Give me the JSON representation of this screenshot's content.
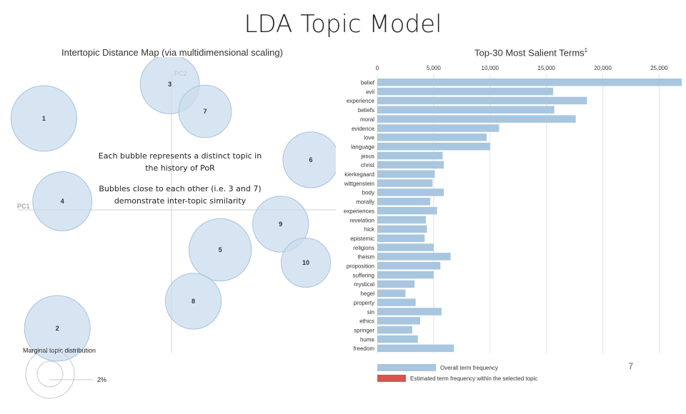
{
  "slide": {
    "title": "LDA Topic Model",
    "page_number": "7"
  },
  "annotations": {
    "bubble_topic": "Each bubble represents a distinct topic in the history of PoR",
    "bubble_similarity": "Bubbles close to each other (i.e. 3 and 7) demonstrate inter-topic similarity"
  },
  "colors": {
    "bubble_fill": "#c9dcee",
    "bubble_stroke": "#a9c3dc",
    "bar_overall": "#a8c6df",
    "bar_selected": "#d9534f"
  },
  "chart_data": [
    {
      "type": "scatter",
      "title": "Intertopic Distance Map (via multidimensional scaling)",
      "xlabel": "PC1",
      "ylabel": "PC2",
      "xlim": [
        -1,
        1
      ],
      "ylim": [
        -1,
        1
      ],
      "topics": [
        {
          "label": "1",
          "x": -0.76,
          "y": 0.64,
          "size": 1.0
        },
        {
          "label": "2",
          "x": -0.68,
          "y": -0.83,
          "size": 1.0
        },
        {
          "label": "3",
          "x": -0.01,
          "y": 0.88,
          "size": 0.9
        },
        {
          "label": "4",
          "x": -0.65,
          "y": 0.06,
          "size": 0.9
        },
        {
          "label": "5",
          "x": 0.29,
          "y": -0.28,
          "size": 0.95
        },
        {
          "label": "6",
          "x": 0.83,
          "y": 0.35,
          "size": 0.85
        },
        {
          "label": "7",
          "x": 0.2,
          "y": 0.69,
          "size": 0.8
        },
        {
          "label": "8",
          "x": 0.13,
          "y": -0.64,
          "size": 0.85
        },
        {
          "label": "9",
          "x": 0.65,
          "y": -0.1,
          "size": 0.85
        },
        {
          "label": "10",
          "x": 0.8,
          "y": -0.37,
          "size": 0.75
        }
      ],
      "legend": {
        "title": "Marginal topic distribution",
        "tick": "2%"
      }
    },
    {
      "type": "bar",
      "orientation": "horizontal",
      "title": "Top-30 Most Salient Terms",
      "title_sup": "1",
      "xlim": [
        0,
        27000
      ],
      "xticks": [
        0,
        5000,
        10000,
        15000,
        20000,
        25000
      ],
      "xtick_labels": [
        "0",
        "5,000",
        "10,000",
        "15,000",
        "20,000",
        "25,000"
      ],
      "categories": [
        "belief",
        "evil",
        "experience",
        "beliefs",
        "moral",
        "evidence",
        "love",
        "language",
        "jesus",
        "christ",
        "kierkegaard",
        "wittgenstein",
        "body",
        "morally",
        "experiences",
        "revelation",
        "hick",
        "epistemic",
        "religions",
        "theism",
        "proposition",
        "suffering",
        "mystical",
        "hegel",
        "property",
        "sin",
        "ethics",
        "springer",
        "hume",
        "freedom"
      ],
      "values": [
        27000,
        15600,
        18600,
        15700,
        17600,
        10800,
        9700,
        10000,
        5800,
        5900,
        5100,
        4900,
        5900,
        4700,
        5300,
        4300,
        4400,
        4200,
        5000,
        6500,
        5600,
        5000,
        3300,
        2500,
        3400,
        5700,
        3800,
        3100,
        3600,
        6800
      ],
      "legend": [
        {
          "label": "Overall term frequency"
        },
        {
          "label": "Estimated term frequency within the selected topic"
        }
      ]
    }
  ]
}
